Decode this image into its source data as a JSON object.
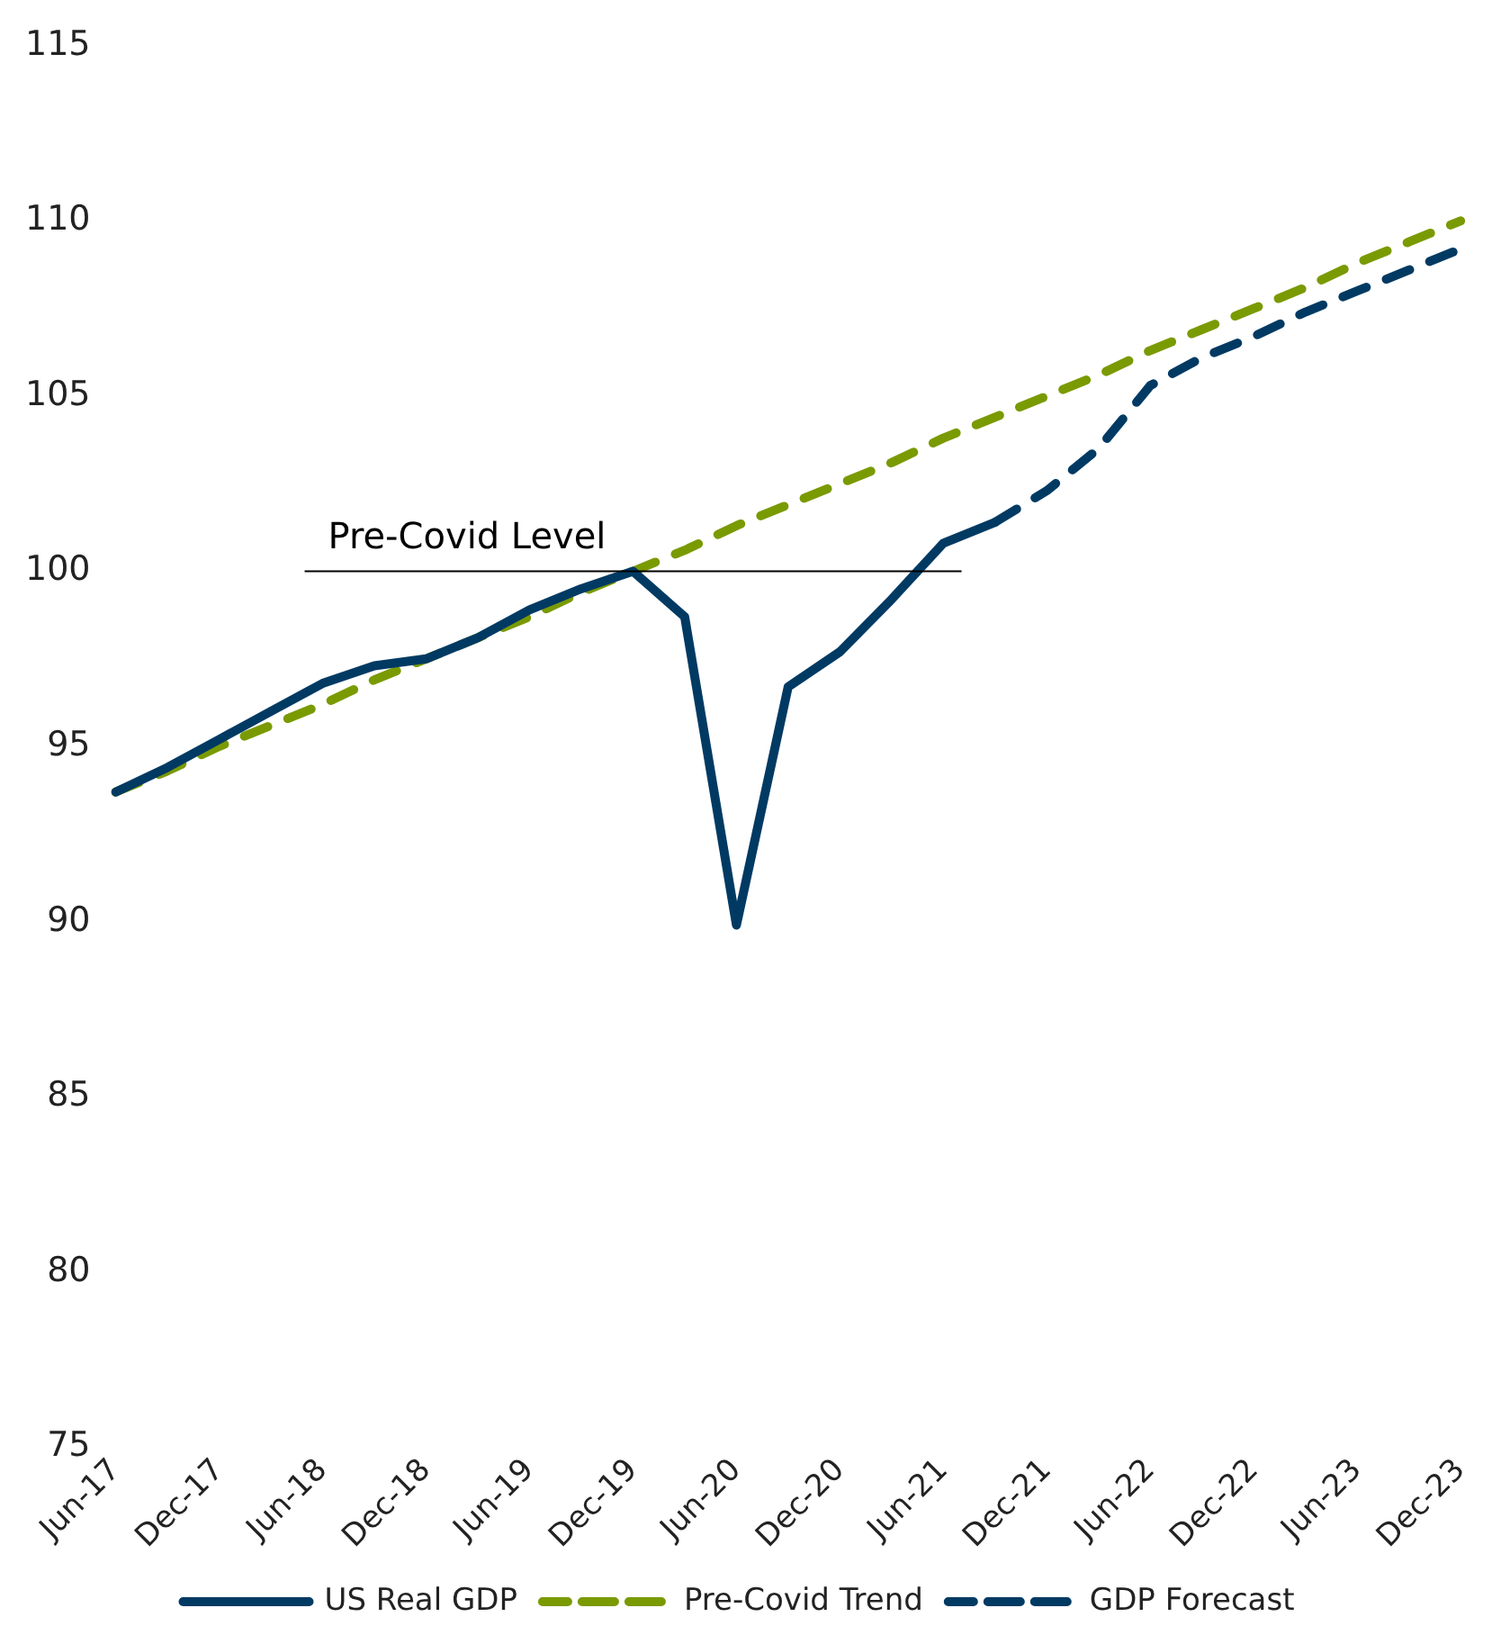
{
  "chart_data": {
    "type": "line",
    "categories": [
      "Jun-17",
      null,
      "Dec-17",
      null,
      "Jun-18",
      null,
      "Dec-18",
      null,
      "Jun-19",
      null,
      "Dec-19",
      null,
      "Jun-20",
      null,
      "Dec-20",
      null,
      "Jun-21",
      null,
      "Dec-21",
      null,
      "Jun-22",
      null,
      "Dec-22",
      null,
      "Jun-23",
      null,
      "Dec-23"
    ],
    "series": [
      {
        "name": "US Real GDP",
        "color": "#003a63",
        "line_style": "solid",
        "values": [
          93.7,
          94.4,
          95.2,
          96.0,
          96.8,
          97.3,
          97.5,
          98.1,
          98.9,
          99.5,
          100.0,
          98.7,
          89.9,
          96.7,
          97.7,
          99.2,
          100.8,
          101.4,
          null,
          null,
          null,
          null,
          null,
          null,
          null,
          null,
          null
        ]
      },
      {
        "name": "Pre-Covid Trend",
        "color": "#7a9a01",
        "line_style": "dashed",
        "values": [
          93.7,
          94.3,
          95.0,
          95.6,
          96.2,
          96.9,
          97.5,
          98.1,
          98.7,
          99.4,
          100.0,
          100.6,
          101.3,
          101.9,
          102.5,
          103.1,
          103.8,
          104.4,
          105.0,
          105.6,
          106.3,
          106.9,
          107.5,
          108.1,
          108.8,
          109.4,
          110.0
        ]
      },
      {
        "name": "GDP Forecast",
        "color": "#003a63",
        "line_style": "dashed",
        "values": [
          null,
          null,
          null,
          null,
          null,
          null,
          null,
          null,
          null,
          null,
          null,
          null,
          null,
          null,
          null,
          null,
          null,
          101.4,
          102.3,
          103.5,
          105.3,
          106.1,
          106.7,
          107.4,
          108.0,
          108.6,
          109.2
        ]
      }
    ],
    "ref_lines": [
      {
        "axis": "y",
        "value": 100,
        "label": "Pre-Covid Level",
        "color": "#000000"
      }
    ],
    "ylim": [
      75,
      115
    ],
    "yticks": [
      75,
      80,
      85,
      90,
      95,
      100,
      105,
      110,
      115
    ],
    "grid": false,
    "legend": "bottom",
    "marker": "none"
  }
}
